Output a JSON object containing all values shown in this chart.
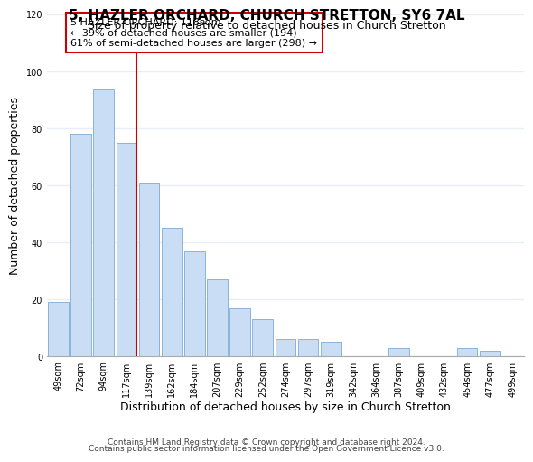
{
  "title": "5, HAZLER ORCHARD, CHURCH STRETTON, SY6 7AL",
  "subtitle": "Size of property relative to detached houses in Church Stretton",
  "xlabel": "Distribution of detached houses by size in Church Stretton",
  "ylabel": "Number of detached properties",
  "bar_labels": [
    "49sqm",
    "72sqm",
    "94sqm",
    "117sqm",
    "139sqm",
    "162sqm",
    "184sqm",
    "207sqm",
    "229sqm",
    "252sqm",
    "274sqm",
    "297sqm",
    "319sqm",
    "342sqm",
    "364sqm",
    "387sqm",
    "409sqm",
    "432sqm",
    "454sqm",
    "477sqm",
    "499sqm"
  ],
  "bar_values": [
    19,
    78,
    94,
    75,
    61,
    45,
    37,
    27,
    17,
    13,
    6,
    6,
    5,
    0,
    0,
    3,
    0,
    0,
    3,
    2,
    0
  ],
  "bar_color": "#c9ddf5",
  "bar_edge_color": "#8ab4d8",
  "highlight_index": 3,
  "highlight_line_color": "#cc0000",
  "annotation_text": "5 HAZLER ORCHARD: 118sqm\n← 39% of detached houses are smaller (194)\n61% of semi-detached houses are larger (298) →",
  "annotation_box_edge_color": "#cc0000",
  "ylim": [
    0,
    120
  ],
  "yticks": [
    0,
    20,
    40,
    60,
    80,
    100,
    120
  ],
  "footer_line1": "Contains HM Land Registry data © Crown copyright and database right 2024.",
  "footer_line2": "Contains public sector information licensed under the Open Government Licence v3.0.",
  "background_color": "#ffffff",
  "grid_color": "#e8eef8",
  "title_fontsize": 11,
  "subtitle_fontsize": 9,
  "axis_label_fontsize": 9,
  "tick_fontsize": 7,
  "annotation_fontsize": 8,
  "footer_fontsize": 6.5
}
